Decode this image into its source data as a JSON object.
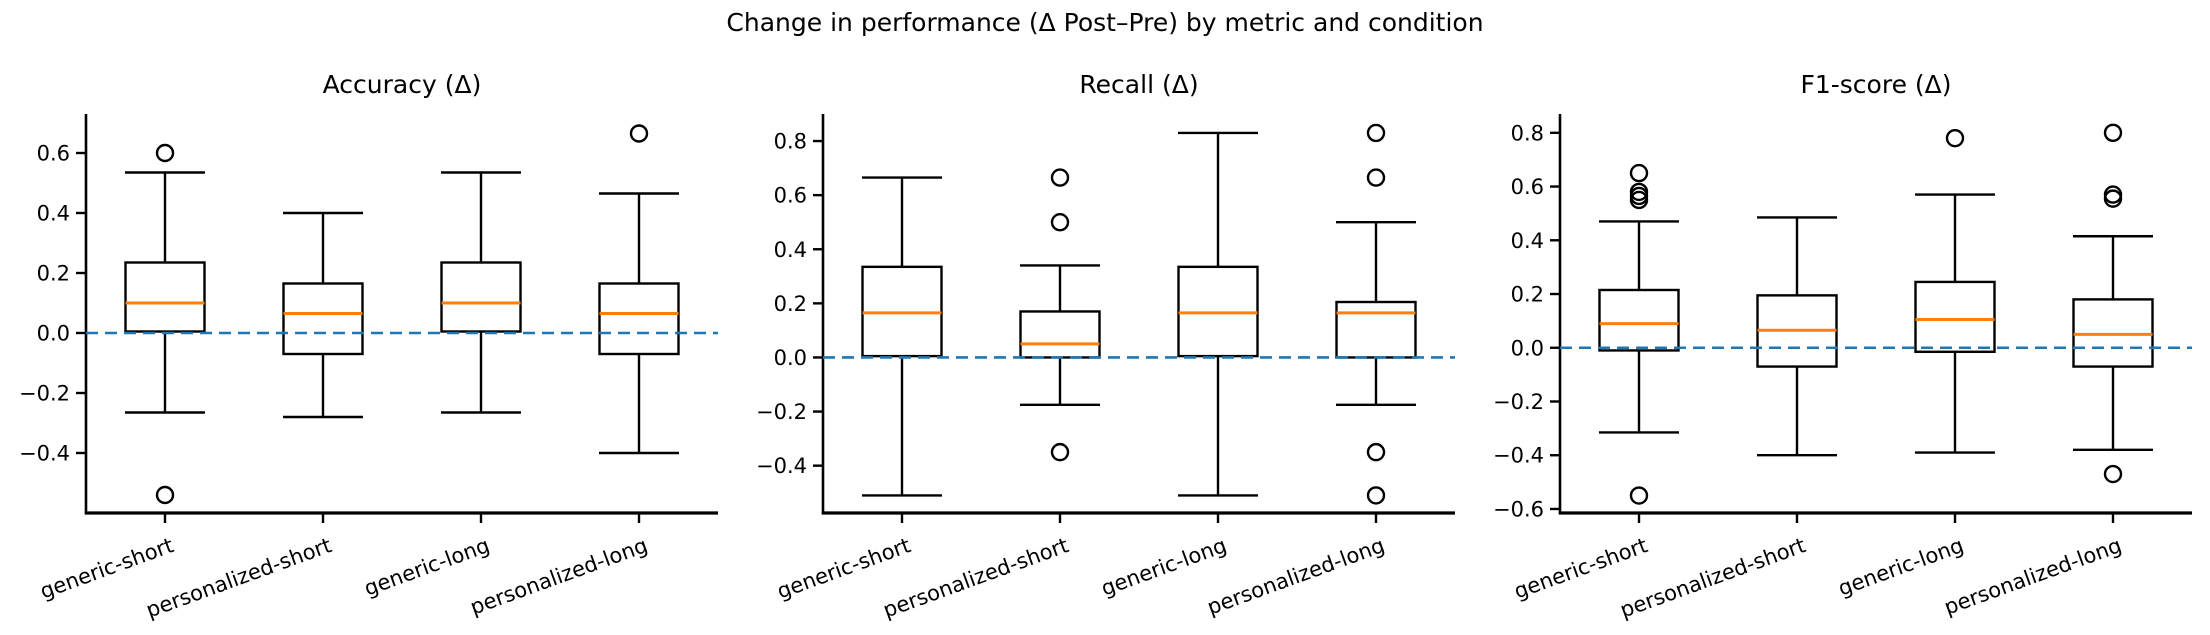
{
  "figure": {
    "suptitle": "Change in performance (Δ Post–Pre) by metric and condition"
  },
  "colors": {
    "background": "#ffffff",
    "box_stroke": "#000000",
    "median_line": "#ff7f0e",
    "zero_line": "#1f77b4",
    "text": "#000000"
  },
  "chart_data": [
    {
      "type": "box",
      "title": "Accuracy (Δ)",
      "categories": [
        "generic-short",
        "personalized-short",
        "generic-long",
        "personalized-long"
      ],
      "ylim": [
        -0.6,
        0.73
      ],
      "yticks": [
        0.6,
        0.4,
        0.2,
        0.0,
        -0.2,
        -0.4
      ],
      "ytick_labels": [
        "0.6",
        "0.4",
        "0.2",
        "0.0",
        "−0.2",
        "−0.4"
      ],
      "reference_line": 0.0,
      "grid": false,
      "legend": null,
      "boxes": [
        {
          "label": "generic-short",
          "whislo": -0.265,
          "q1": 0.005,
          "med": 0.1,
          "q3": 0.235,
          "whishi": 0.535,
          "fliers": [
            0.6,
            -0.54
          ]
        },
        {
          "label": "personalized-short",
          "whislo": -0.28,
          "q1": -0.07,
          "med": 0.065,
          "q3": 0.165,
          "whishi": 0.4,
          "fliers": []
        },
        {
          "label": "generic-long",
          "whislo": -0.265,
          "q1": 0.005,
          "med": 0.1,
          "q3": 0.235,
          "whishi": 0.535,
          "fliers": []
        },
        {
          "label": "personalized-long",
          "whislo": -0.4,
          "q1": -0.07,
          "med": 0.065,
          "q3": 0.165,
          "whishi": 0.465,
          "fliers": [
            0.665
          ]
        }
      ]
    },
    {
      "type": "box",
      "title": "Recall (Δ)",
      "categories": [
        "generic-short",
        "personalized-short",
        "generic-long",
        "personalized-long"
      ],
      "ylim": [
        -0.575,
        0.9
      ],
      "yticks": [
        0.8,
        0.6,
        0.4,
        0.2,
        0.0,
        -0.2,
        -0.4
      ],
      "ytick_labels": [
        "0.8",
        "0.6",
        "0.4",
        "0.2",
        "0.0",
        "−0.2",
        "−0.4"
      ],
      "reference_line": 0.0,
      "grid": false,
      "legend": null,
      "boxes": [
        {
          "label": "generic-short",
          "whislo": -0.51,
          "q1": 0.005,
          "med": 0.165,
          "q3": 0.335,
          "whishi": 0.665,
          "fliers": []
        },
        {
          "label": "personalized-short",
          "whislo": -0.175,
          "q1": 0.0,
          "med": 0.05,
          "q3": 0.17,
          "whishi": 0.34,
          "fliers": [
            0.665,
            0.5,
            -0.35
          ]
        },
        {
          "label": "generic-long",
          "whislo": -0.51,
          "q1": 0.005,
          "med": 0.165,
          "q3": 0.335,
          "whishi": 0.83,
          "fliers": []
        },
        {
          "label": "personalized-long",
          "whislo": -0.175,
          "q1": 0.0,
          "med": 0.165,
          "q3": 0.205,
          "whishi": 0.5,
          "fliers": [
            0.83,
            0.665,
            -0.35,
            -0.51
          ]
        }
      ]
    },
    {
      "type": "box",
      "title": "F1-score (Δ)",
      "categories": [
        "generic-short",
        "personalized-short",
        "generic-long",
        "personalized-long"
      ],
      "ylim": [
        -0.615,
        0.87
      ],
      "yticks": [
        0.8,
        0.6,
        0.4,
        0.2,
        0.0,
        -0.2,
        -0.4,
        -0.6
      ],
      "ytick_labels": [
        "0.8",
        "0.6",
        "0.4",
        "0.2",
        "0.0",
        "−0.2",
        "−0.4",
        "−0.6"
      ],
      "reference_line": 0.0,
      "grid": false,
      "legend": null,
      "boxes": [
        {
          "label": "generic-short",
          "whislo": -0.315,
          "q1": -0.01,
          "med": 0.09,
          "q3": 0.215,
          "whishi": 0.47,
          "fliers": [
            0.65,
            0.58,
            0.565,
            0.55,
            -0.55
          ]
        },
        {
          "label": "personalized-short",
          "whislo": -0.4,
          "q1": -0.07,
          "med": 0.065,
          "q3": 0.195,
          "whishi": 0.485,
          "fliers": []
        },
        {
          "label": "generic-long",
          "whislo": -0.39,
          "q1": -0.015,
          "med": 0.105,
          "q3": 0.245,
          "whishi": 0.57,
          "fliers": [
            0.78
          ]
        },
        {
          "label": "personalized-long",
          "whislo": -0.38,
          "q1": -0.07,
          "med": 0.05,
          "q3": 0.18,
          "whishi": 0.415,
          "fliers": [
            0.8,
            0.57,
            0.555,
            -0.47
          ]
        }
      ]
    }
  ]
}
